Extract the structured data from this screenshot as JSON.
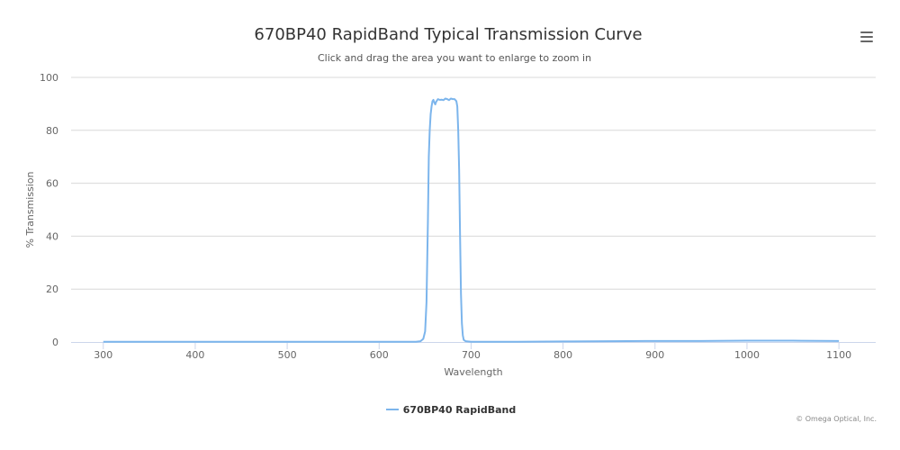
{
  "chart": {
    "title": "670BP40 RapidBand Typical Transmission Curve",
    "subtitle": "Click and drag the area you want to enlarge to zoom in",
    "menu_icon": "hamburger-menu-icon",
    "credits": "© Omega Optical, Inc."
  },
  "chart_data": {
    "type": "line",
    "title": "670BP40 RapidBand Typical Transmission Curve",
    "subtitle": "Click and drag the area you want to enlarge to zoom in",
    "xlabel": "Wavelength",
    "ylabel": "% Transmission",
    "xlim": [
      265,
      1140
    ],
    "ylim": [
      0,
      100
    ],
    "x_ticks": [
      300,
      400,
      500,
      600,
      700,
      800,
      900,
      1000,
      1100
    ],
    "y_ticks": [
      0,
      20,
      40,
      60,
      80,
      100
    ],
    "grid": "horizontal",
    "legend_position": "bottom-center",
    "series": [
      {
        "name": "670BP40 RapidBand",
        "color": "#7cb5ec",
        "points": [
          [
            300,
            0.1
          ],
          [
            400,
            0.1
          ],
          [
            500,
            0.1
          ],
          [
            600,
            0.1
          ],
          [
            640,
            0.1
          ],
          [
            645,
            0.3
          ],
          [
            648,
            1.2
          ],
          [
            650,
            4
          ],
          [
            651.5,
            15
          ],
          [
            653,
            45
          ],
          [
            654,
            70
          ],
          [
            655,
            80
          ],
          [
            656,
            86
          ],
          [
            657,
            89
          ],
          [
            658,
            91
          ],
          [
            659,
            91.5
          ],
          [
            660,
            90.5
          ],
          [
            661,
            89.8
          ],
          [
            662,
            90.8
          ],
          [
            664,
            91.8
          ],
          [
            666,
            91.5
          ],
          [
            668,
            91.6
          ],
          [
            670,
            91.4
          ],
          [
            672,
            92
          ],
          [
            674,
            91.8
          ],
          [
            676,
            91.4
          ],
          [
            678,
            92
          ],
          [
            680,
            91.8
          ],
          [
            682,
            91.8
          ],
          [
            684,
            91
          ],
          [
            685,
            89
          ],
          [
            686,
            80
          ],
          [
            687,
            65
          ],
          [
            688,
            40
          ],
          [
            689,
            18
          ],
          [
            690,
            7
          ],
          [
            691,
            2.5
          ],
          [
            692,
            0.8
          ],
          [
            694,
            0.3
          ],
          [
            700,
            0.1
          ],
          [
            750,
            0.1
          ],
          [
            800,
            0.2
          ],
          [
            850,
            0.3
          ],
          [
            890,
            0.4
          ],
          [
            950,
            0.4
          ],
          [
            1000,
            0.5
          ],
          [
            1050,
            0.5
          ],
          [
            1100,
            0.4
          ]
        ]
      }
    ]
  }
}
